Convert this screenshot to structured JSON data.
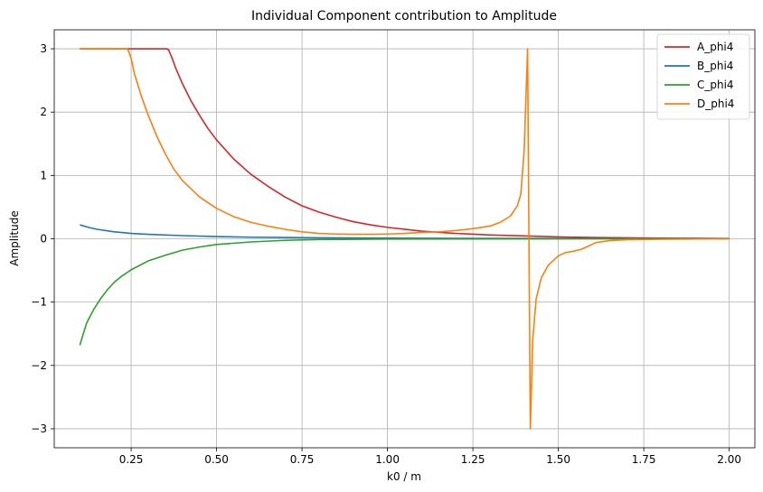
{
  "chart_data": {
    "type": "line",
    "title": "Individual Component contribution to Amplitude",
    "xlabel": "k0 / m",
    "ylabel": "Amplitude",
    "xlim": [
      0.025,
      2.075
    ],
    "ylim": [
      -3.3,
      3.3
    ],
    "xticks": [
      0.25,
      0.5,
      0.75,
      1.0,
      1.25,
      1.5,
      1.75,
      2.0
    ],
    "xtick_labels": [
      "0.25",
      "0.50",
      "0.75",
      "1.00",
      "1.25",
      "1.50",
      "1.75",
      "2.00"
    ],
    "yticks": [
      -3,
      -2,
      -1,
      0,
      1,
      2,
      3
    ],
    "ytick_labels": [
      "−3",
      "−2",
      "−1",
      "0",
      "1",
      "2",
      "3"
    ],
    "grid": true,
    "legend_position": "top-right",
    "series": [
      {
        "name": "A_phi4",
        "color": "#d62728",
        "points": [
          [
            0.1,
            3.0
          ],
          [
            0.2,
            3.0
          ],
          [
            0.3,
            3.0
          ],
          [
            0.355,
            3.0
          ],
          [
            0.36,
            2.98
          ],
          [
            0.37,
            2.85
          ],
          [
            0.38,
            2.7
          ],
          [
            0.4,
            2.45
          ],
          [
            0.425,
            2.18
          ],
          [
            0.45,
            1.95
          ],
          [
            0.475,
            1.74
          ],
          [
            0.5,
            1.56
          ],
          [
            0.55,
            1.26
          ],
          [
            0.6,
            1.02
          ],
          [
            0.65,
            0.83
          ],
          [
            0.7,
            0.66
          ],
          [
            0.75,
            0.52
          ],
          [
            0.8,
            0.42
          ],
          [
            0.85,
            0.34
          ],
          [
            0.9,
            0.27
          ],
          [
            0.95,
            0.22
          ],
          [
            1.0,
            0.18
          ],
          [
            1.05,
            0.15
          ],
          [
            1.1,
            0.12
          ],
          [
            1.2,
            0.085
          ],
          [
            1.3,
            0.06
          ],
          [
            1.4,
            0.045
          ],
          [
            1.5,
            0.03
          ],
          [
            1.6,
            0.02
          ],
          [
            1.7,
            0.015
          ],
          [
            1.8,
            0.01
          ],
          [
            1.9,
            0.008
          ],
          [
            2.0,
            0.005
          ]
        ]
      },
      {
        "name": "B_phi4",
        "color": "#1f77b4",
        "points": [
          [
            0.1,
            0.22
          ],
          [
            0.125,
            0.18
          ],
          [
            0.15,
            0.15
          ],
          [
            0.2,
            0.11
          ],
          [
            0.25,
            0.085
          ],
          [
            0.3,
            0.07
          ],
          [
            0.4,
            0.05
          ],
          [
            0.5,
            0.035
          ],
          [
            0.6,
            0.025
          ],
          [
            0.7,
            0.02
          ],
          [
            0.8,
            0.015
          ],
          [
            1.0,
            0.01
          ],
          [
            1.2,
            0.007
          ],
          [
            1.5,
            0.005
          ],
          [
            2.0,
            0.003
          ]
        ]
      },
      {
        "name": "C_phi4",
        "color": "#2ca02c",
        "points": [
          [
            0.1,
            -1.68
          ],
          [
            0.11,
            -1.5
          ],
          [
            0.12,
            -1.33
          ],
          [
            0.14,
            -1.12
          ],
          [
            0.16,
            -0.95
          ],
          [
            0.18,
            -0.81
          ],
          [
            0.2,
            -0.69
          ],
          [
            0.22,
            -0.6
          ],
          [
            0.25,
            -0.49
          ],
          [
            0.3,
            -0.35
          ],
          [
            0.35,
            -0.26
          ],
          [
            0.4,
            -0.18
          ],
          [
            0.45,
            -0.13
          ],
          [
            0.5,
            -0.09
          ],
          [
            0.6,
            -0.05
          ],
          [
            0.7,
            -0.025
          ],
          [
            0.8,
            -0.012
          ],
          [
            1.0,
            -0.005
          ],
          [
            1.2,
            -0.002
          ],
          [
            2.0,
            0.0
          ]
        ]
      },
      {
        "name": "D_phi4",
        "color": "#ff7f0e",
        "points": [
          [
            0.1,
            3.0
          ],
          [
            0.2,
            3.0
          ],
          [
            0.24,
            3.0
          ],
          [
            0.25,
            2.85
          ],
          [
            0.26,
            2.6
          ],
          [
            0.28,
            2.25
          ],
          [
            0.3,
            1.95
          ],
          [
            0.325,
            1.62
          ],
          [
            0.35,
            1.34
          ],
          [
            0.375,
            1.1
          ],
          [
            0.4,
            0.92
          ],
          [
            0.45,
            0.66
          ],
          [
            0.5,
            0.48
          ],
          [
            0.55,
            0.35
          ],
          [
            0.6,
            0.26
          ],
          [
            0.65,
            0.2
          ],
          [
            0.7,
            0.15
          ],
          [
            0.75,
            0.11
          ],
          [
            0.8,
            0.085
          ],
          [
            0.85,
            0.075
          ],
          [
            0.9,
            0.07
          ],
          [
            0.95,
            0.07
          ],
          [
            1.0,
            0.075
          ],
          [
            1.05,
            0.085
          ],
          [
            1.1,
            0.1
          ],
          [
            1.15,
            0.11
          ],
          [
            1.2,
            0.13
          ],
          [
            1.25,
            0.16
          ],
          [
            1.3,
            0.2
          ],
          [
            1.33,
            0.26
          ],
          [
            1.36,
            0.36
          ],
          [
            1.38,
            0.52
          ],
          [
            1.39,
            0.7
          ],
          [
            1.4,
            1.4
          ],
          [
            1.405,
            2.2
          ],
          [
            1.41,
            3.0
          ],
          [
            1.414,
            0.0
          ],
          [
            1.418,
            -3.0
          ],
          [
            1.425,
            -1.6
          ],
          [
            1.435,
            -0.95
          ],
          [
            1.45,
            -0.62
          ],
          [
            1.47,
            -0.42
          ],
          [
            1.5,
            -0.27
          ],
          [
            1.52,
            -0.22
          ],
          [
            1.55,
            -0.19
          ],
          [
            1.57,
            -0.16
          ],
          [
            1.59,
            -0.11
          ],
          [
            1.61,
            -0.06
          ],
          [
            1.65,
            -0.03
          ],
          [
            1.7,
            -0.015
          ],
          [
            1.8,
            -0.008
          ],
          [
            2.0,
            0.0
          ]
        ]
      }
    ]
  }
}
